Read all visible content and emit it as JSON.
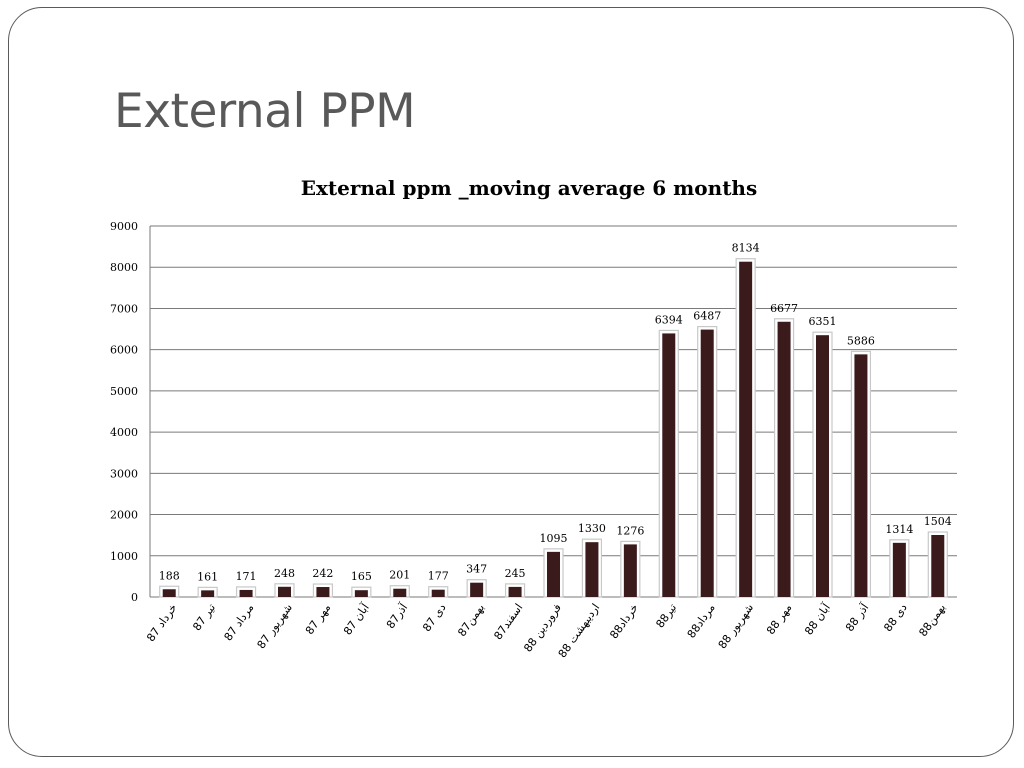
{
  "slide": {
    "title": "External PPM"
  },
  "chart_data": {
    "type": "bar",
    "title": "External ppm _moving average 6 months",
    "xlabel": "",
    "ylabel": "",
    "ylim": [
      0,
      9000
    ],
    "yticks": [
      0,
      1000,
      2000,
      3000,
      4000,
      5000,
      6000,
      7000,
      8000,
      9000
    ],
    "grid": true,
    "legend": "none",
    "categories": [
      "خرداد 87",
      "تیر 87",
      "مرداد 87",
      "شهریور 87",
      "مهر 87",
      "آبان 87",
      "آذر87",
      "دی 87",
      "بهمن87",
      "اسفند87",
      "فروردین 88",
      "اردیبهشت 88",
      "خرداد88",
      "تیر88",
      "مرداد88",
      "شهریور 88",
      "مهر 88",
      "آبان 88",
      "آذر 88",
      "دی 88",
      "بهمن88"
    ],
    "values": [
      188,
      161,
      171,
      248,
      242,
      165,
      201,
      177,
      347,
      245,
      1095,
      1330,
      1276,
      6394,
      6487,
      8134,
      6677,
      6351,
      5886,
      1314,
      1504
    ],
    "bar_color": "#3b1a1c",
    "bar_outline_color": "#c8c8c8",
    "gridline_color": "#7a7a7a"
  }
}
